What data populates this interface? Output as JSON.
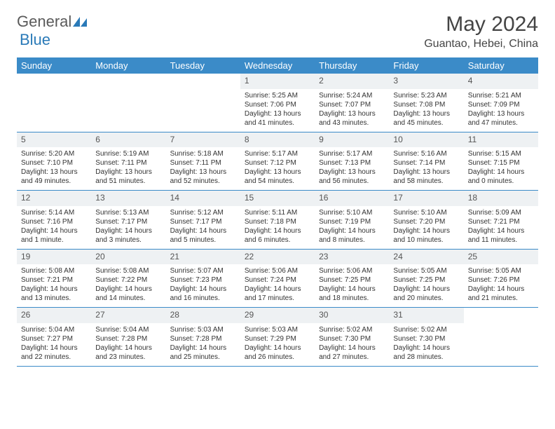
{
  "logo": {
    "text1": "General",
    "text2": "Blue"
  },
  "title": "May 2024",
  "location": "Guantao, Hebei, China",
  "styling": {
    "header_bg": "#3b8bc8",
    "header_fg": "#ffffff",
    "daynum_bg": "#eef1f3",
    "row_divider": "#3b8bc8",
    "page_bg": "#ffffff",
    "text_color": "#333333",
    "title_fontsize": 30,
    "location_fontsize": 16,
    "dayheader_fontsize": 13,
    "cell_fontsize": 10
  },
  "weekdays": [
    "Sunday",
    "Monday",
    "Tuesday",
    "Wednesday",
    "Thursday",
    "Friday",
    "Saturday"
  ],
  "weeks": [
    [
      {
        "n": "",
        "empty": true
      },
      {
        "n": "",
        "empty": true
      },
      {
        "n": "",
        "empty": true
      },
      {
        "n": "1",
        "sr": "Sunrise: 5:25 AM",
        "ss": "Sunset: 7:06 PM",
        "dl": "Daylight: 13 hours and 41 minutes."
      },
      {
        "n": "2",
        "sr": "Sunrise: 5:24 AM",
        "ss": "Sunset: 7:07 PM",
        "dl": "Daylight: 13 hours and 43 minutes."
      },
      {
        "n": "3",
        "sr": "Sunrise: 5:23 AM",
        "ss": "Sunset: 7:08 PM",
        "dl": "Daylight: 13 hours and 45 minutes."
      },
      {
        "n": "4",
        "sr": "Sunrise: 5:21 AM",
        "ss": "Sunset: 7:09 PM",
        "dl": "Daylight: 13 hours and 47 minutes."
      }
    ],
    [
      {
        "n": "5",
        "sr": "Sunrise: 5:20 AM",
        "ss": "Sunset: 7:10 PM",
        "dl": "Daylight: 13 hours and 49 minutes."
      },
      {
        "n": "6",
        "sr": "Sunrise: 5:19 AM",
        "ss": "Sunset: 7:11 PM",
        "dl": "Daylight: 13 hours and 51 minutes."
      },
      {
        "n": "7",
        "sr": "Sunrise: 5:18 AM",
        "ss": "Sunset: 7:11 PM",
        "dl": "Daylight: 13 hours and 52 minutes."
      },
      {
        "n": "8",
        "sr": "Sunrise: 5:17 AM",
        "ss": "Sunset: 7:12 PM",
        "dl": "Daylight: 13 hours and 54 minutes."
      },
      {
        "n": "9",
        "sr": "Sunrise: 5:17 AM",
        "ss": "Sunset: 7:13 PM",
        "dl": "Daylight: 13 hours and 56 minutes."
      },
      {
        "n": "10",
        "sr": "Sunrise: 5:16 AM",
        "ss": "Sunset: 7:14 PM",
        "dl": "Daylight: 13 hours and 58 minutes."
      },
      {
        "n": "11",
        "sr": "Sunrise: 5:15 AM",
        "ss": "Sunset: 7:15 PM",
        "dl": "Daylight: 14 hours and 0 minutes."
      }
    ],
    [
      {
        "n": "12",
        "sr": "Sunrise: 5:14 AM",
        "ss": "Sunset: 7:16 PM",
        "dl": "Daylight: 14 hours and 1 minute."
      },
      {
        "n": "13",
        "sr": "Sunrise: 5:13 AM",
        "ss": "Sunset: 7:17 PM",
        "dl": "Daylight: 14 hours and 3 minutes."
      },
      {
        "n": "14",
        "sr": "Sunrise: 5:12 AM",
        "ss": "Sunset: 7:17 PM",
        "dl": "Daylight: 14 hours and 5 minutes."
      },
      {
        "n": "15",
        "sr": "Sunrise: 5:11 AM",
        "ss": "Sunset: 7:18 PM",
        "dl": "Daylight: 14 hours and 6 minutes."
      },
      {
        "n": "16",
        "sr": "Sunrise: 5:10 AM",
        "ss": "Sunset: 7:19 PM",
        "dl": "Daylight: 14 hours and 8 minutes."
      },
      {
        "n": "17",
        "sr": "Sunrise: 5:10 AM",
        "ss": "Sunset: 7:20 PM",
        "dl": "Daylight: 14 hours and 10 minutes."
      },
      {
        "n": "18",
        "sr": "Sunrise: 5:09 AM",
        "ss": "Sunset: 7:21 PM",
        "dl": "Daylight: 14 hours and 11 minutes."
      }
    ],
    [
      {
        "n": "19",
        "sr": "Sunrise: 5:08 AM",
        "ss": "Sunset: 7:21 PM",
        "dl": "Daylight: 14 hours and 13 minutes."
      },
      {
        "n": "20",
        "sr": "Sunrise: 5:08 AM",
        "ss": "Sunset: 7:22 PM",
        "dl": "Daylight: 14 hours and 14 minutes."
      },
      {
        "n": "21",
        "sr": "Sunrise: 5:07 AM",
        "ss": "Sunset: 7:23 PM",
        "dl": "Daylight: 14 hours and 16 minutes."
      },
      {
        "n": "22",
        "sr": "Sunrise: 5:06 AM",
        "ss": "Sunset: 7:24 PM",
        "dl": "Daylight: 14 hours and 17 minutes."
      },
      {
        "n": "23",
        "sr": "Sunrise: 5:06 AM",
        "ss": "Sunset: 7:25 PM",
        "dl": "Daylight: 14 hours and 18 minutes."
      },
      {
        "n": "24",
        "sr": "Sunrise: 5:05 AM",
        "ss": "Sunset: 7:25 PM",
        "dl": "Daylight: 14 hours and 20 minutes."
      },
      {
        "n": "25",
        "sr": "Sunrise: 5:05 AM",
        "ss": "Sunset: 7:26 PM",
        "dl": "Daylight: 14 hours and 21 minutes."
      }
    ],
    [
      {
        "n": "26",
        "sr": "Sunrise: 5:04 AM",
        "ss": "Sunset: 7:27 PM",
        "dl": "Daylight: 14 hours and 22 minutes."
      },
      {
        "n": "27",
        "sr": "Sunrise: 5:04 AM",
        "ss": "Sunset: 7:28 PM",
        "dl": "Daylight: 14 hours and 23 minutes."
      },
      {
        "n": "28",
        "sr": "Sunrise: 5:03 AM",
        "ss": "Sunset: 7:28 PM",
        "dl": "Daylight: 14 hours and 25 minutes."
      },
      {
        "n": "29",
        "sr": "Sunrise: 5:03 AM",
        "ss": "Sunset: 7:29 PM",
        "dl": "Daylight: 14 hours and 26 minutes."
      },
      {
        "n": "30",
        "sr": "Sunrise: 5:02 AM",
        "ss": "Sunset: 7:30 PM",
        "dl": "Daylight: 14 hours and 27 minutes."
      },
      {
        "n": "31",
        "sr": "Sunrise: 5:02 AM",
        "ss": "Sunset: 7:30 PM",
        "dl": "Daylight: 14 hours and 28 minutes."
      },
      {
        "n": "",
        "empty": true
      }
    ]
  ]
}
